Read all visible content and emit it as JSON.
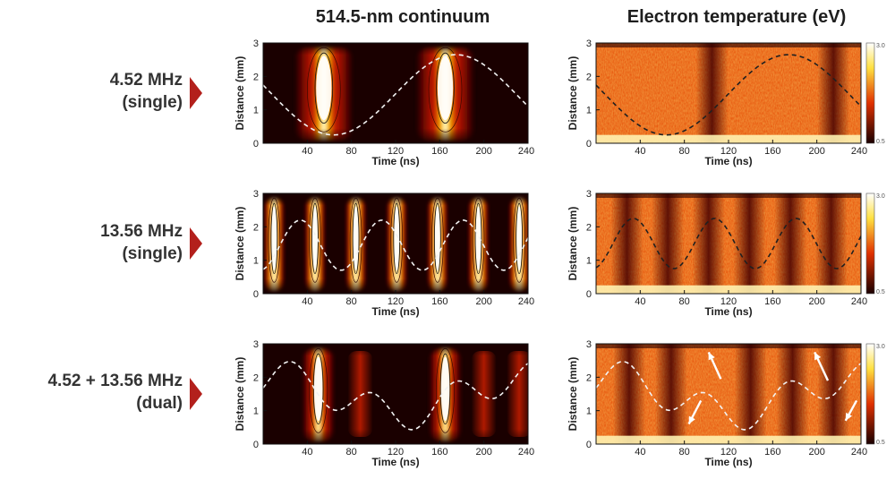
{
  "columns": {
    "left_title": "514.5-nm continuum",
    "right_title": "Electron temperature (eV)"
  },
  "rows": [
    {
      "line1": "4.52 MHz",
      "line2": "(single)"
    },
    {
      "line1": "13.56 MHz",
      "line2": "(single)"
    },
    {
      "line1": "4.52 + 13.56 MHz",
      "line2": "(dual)"
    }
  ],
  "colors": {
    "arrow": "#b3201c",
    "dark": "#1a0000",
    "mid": "#c81e00",
    "bright": "#ffd000",
    "white": "#ffffff",
    "dashed_light": "#f2f2f2",
    "dashed_dark": "#202020"
  },
  "chart_data": [
    {
      "type": "heatmap",
      "panel": "continuum-4.52",
      "xlabel": "Time (ns)",
      "ylabel": "Distance (mm)",
      "xlim": [
        0,
        240
      ],
      "ylim": [
        0,
        3
      ],
      "xticks": [
        "40",
        "80",
        "120",
        "160",
        "200",
        "240"
      ],
      "yticks": [
        "0",
        "1",
        "2",
        "3"
      ],
      "bright_centers_ns": [
        55,
        165
      ],
      "blob_width_ns": 40,
      "dashed_wave": {
        "color": "light",
        "freq_mhz": 4.52,
        "mean_mm": 1.45,
        "amp_mm": 1.2
      }
    },
    {
      "type": "heatmap",
      "panel": "te-4.52",
      "xlabel": "Time (ns)",
      "ylabel": "Distance (mm)",
      "xlim": [
        0,
        240
      ],
      "ylim": [
        0,
        3
      ],
      "xticks": [
        "40",
        "80",
        "120",
        "160",
        "200",
        "240"
      ],
      "yticks": [
        "0",
        "1",
        "2",
        "3"
      ],
      "colorbar": {
        "min": "0.5",
        "max": "3.0"
      },
      "dark_bands_ns": [
        105,
        215
      ],
      "dashed_wave": {
        "color": "dark",
        "freq_mhz": 4.52,
        "mean_mm": 1.45,
        "amp_mm": 1.2
      }
    },
    {
      "type": "heatmap",
      "panel": "continuum-13.56",
      "xlabel": "Time (ns)",
      "ylabel": "Distance (mm)",
      "xlim": [
        0,
        240
      ],
      "ylim": [
        0,
        3
      ],
      "xticks": [
        "40",
        "80",
        "120",
        "160",
        "200",
        "240"
      ],
      "yticks": [
        "0",
        "1",
        "2",
        "3"
      ],
      "bright_centers_ns": [
        10,
        47,
        84,
        121,
        158,
        195,
        232
      ],
      "blob_width_ns": 14,
      "dashed_wave": {
        "color": "light",
        "freq_mhz": 13.56,
        "mean_mm": 1.45,
        "amp_mm": 0.75
      }
    },
    {
      "type": "heatmap",
      "panel": "te-13.56",
      "xlabel": "Time (ns)",
      "ylabel": "Distance (mm)",
      "xlim": [
        0,
        240
      ],
      "ylim": [
        0,
        3
      ],
      "xticks": [
        "40",
        "80",
        "120",
        "160",
        "200",
        "240"
      ],
      "yticks": [
        "0",
        "1",
        "2",
        "3"
      ],
      "colorbar": {
        "min": "0.5",
        "max": "3.0"
      },
      "dark_bands_ns": [
        28,
        65,
        102,
        139,
        176,
        213
      ],
      "dashed_wave": {
        "color": "dark",
        "freq_mhz": 13.56,
        "mean_mm": 1.5,
        "amp_mm": 0.75
      }
    },
    {
      "type": "heatmap",
      "panel": "continuum-dual",
      "xlabel": "Time (ns)",
      "ylabel": "Distance (mm)",
      "xlim": [
        0,
        240
      ],
      "ylim": [
        0,
        3
      ],
      "xticks": [
        "40",
        "80",
        "120",
        "160",
        "200",
        "240"
      ],
      "yticks": [
        "0",
        "1",
        "2",
        "3"
      ],
      "bright_centers_ns": [
        50,
        165
      ],
      "blob_width_ns": 22,
      "faint_centers_ns": [
        88,
        200,
        232
      ],
      "dashed_wave": {
        "color": "light",
        "dual": true,
        "mean_mm": 1.45,
        "amp1_mm": 0.55,
        "amp2_mm": 0.5
      }
    },
    {
      "type": "heatmap",
      "panel": "te-dual",
      "xlabel": "Time (ns)",
      "ylabel": "Distance (mm)",
      "xlim": [
        0,
        240
      ],
      "ylim": [
        0,
        3
      ],
      "xticks": [
        "40",
        "80",
        "120",
        "160",
        "200",
        "240"
      ],
      "yticks": [
        "0",
        "1",
        "2",
        "3"
      ],
      "colorbar": {
        "min": "0.5",
        "max": "3.0"
      },
      "dark_bands_ns": [
        30,
        68,
        140,
        178,
        215
      ],
      "dashed_wave": {
        "color": "light",
        "dual": true,
        "mean_mm": 1.45,
        "amp1_mm": 0.55,
        "amp2_mm": 0.5
      },
      "arrows": [
        {
          "from": [
            95,
            1.3
          ],
          "to": [
            84,
            0.6
          ]
        },
        {
          "from": [
            113,
            1.95
          ],
          "to": [
            102,
            2.75
          ]
        },
        {
          "from": [
            210,
            1.9
          ],
          "to": [
            198,
            2.75
          ]
        },
        {
          "from": [
            236,
            1.3
          ],
          "to": [
            226,
            0.7
          ]
        }
      ]
    }
  ]
}
